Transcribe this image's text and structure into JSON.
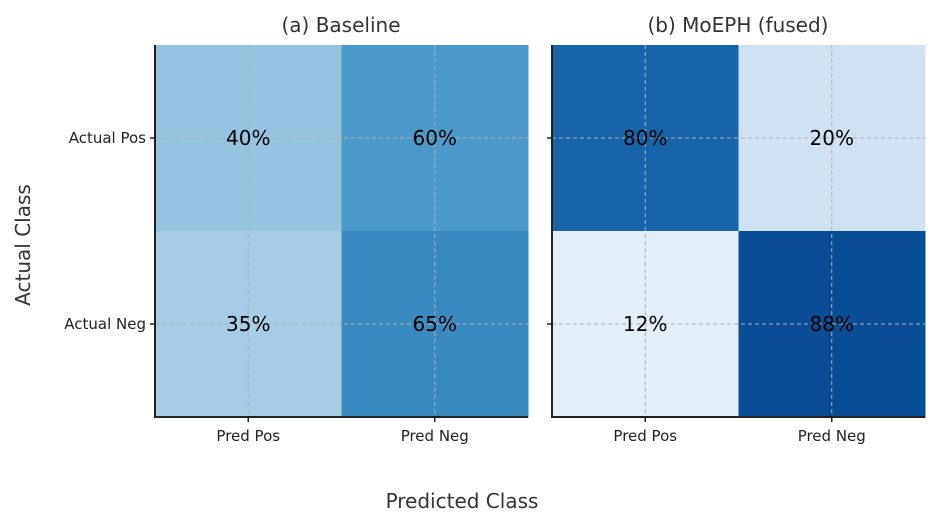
{
  "chart_data": {
    "type": "heatmap",
    "ylabel": "Actual Class",
    "xlabel": "Predicted Class",
    "panels": [
      {
        "title": "(a) Baseline",
        "x_categories": [
          "Pred Pos",
          "Pred Neg"
        ],
        "y_categories": [
          "Actual Pos",
          "Actual Neg"
        ],
        "values": [
          [
            40,
            60
          ],
          [
            35,
            65
          ]
        ],
        "labels": [
          [
            "40%",
            "60%"
          ],
          [
            "35%",
            "65%"
          ]
        ],
        "colors": [
          [
            "#94c4df",
            "#4b98ca"
          ],
          [
            "#a6cde3",
            "#3a8ac2"
          ]
        ]
      },
      {
        "title": "(b) MoEPH (fused)",
        "x_categories": [
          "Pred Pos",
          "Pred Neg"
        ],
        "y_categories": [
          "Actual Pos",
          "Actual Neg"
        ],
        "values": [
          [
            80,
            20
          ],
          [
            12,
            88
          ]
        ],
        "labels": [
          [
            "80%",
            "20%"
          ],
          [
            "12%",
            "88%"
          ]
        ],
        "colors": [
          [
            "#1764ab",
            "#d0e1f2"
          ],
          [
            "#e3eef9",
            "#084d96"
          ]
        ]
      }
    ],
    "grid": true
  }
}
